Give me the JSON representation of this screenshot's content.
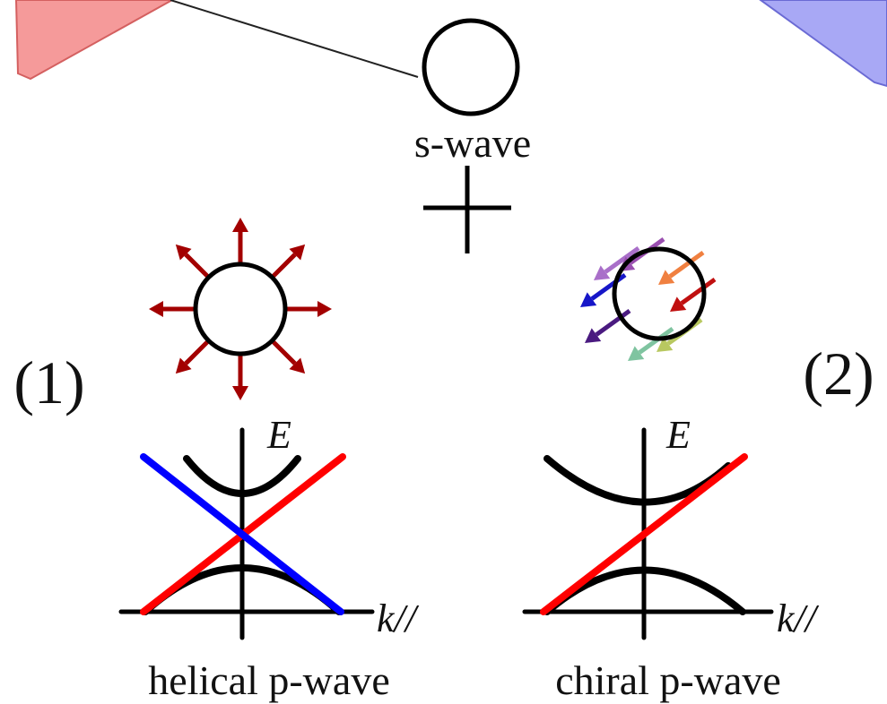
{
  "top": {
    "s_wave_label": "s-wave"
  },
  "panels": [
    {
      "number": "(1)",
      "energy_axis": "E",
      "momentum_axis": "k//",
      "caption": "helical p-wave"
    },
    {
      "number": "(2)",
      "energy_axis": "E",
      "momentum_axis": "k//",
      "caption": "chiral p-wave"
    }
  ]
}
